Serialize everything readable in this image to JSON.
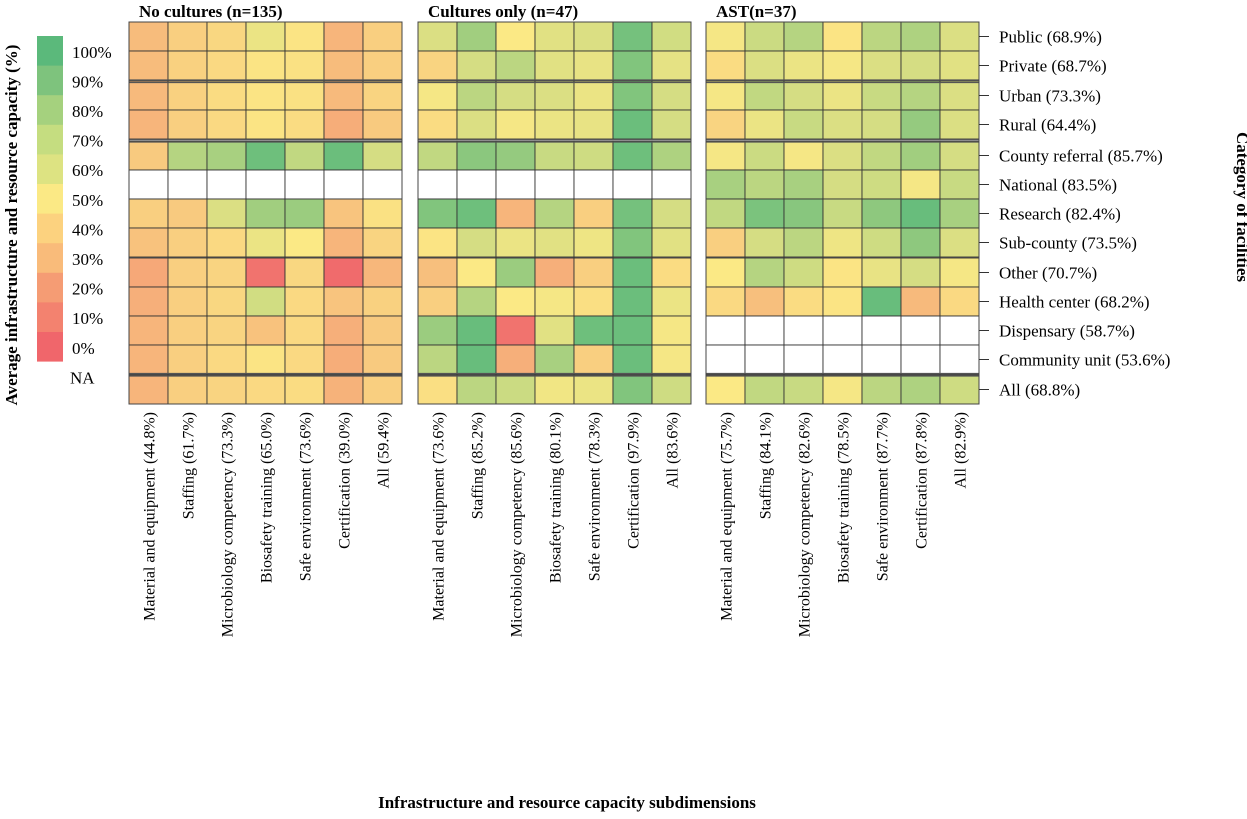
{
  "chart_data": {
    "type": "heatmap",
    "xlabel": "Infrastructure and resource capacity subdimensions",
    "ylabel_left": "Average infrastructure and resource capacity (%)",
    "ylabel_right": "Category of facilities",
    "legend": {
      "labels": [
        "100%",
        "90%",
        "80%",
        "70%",
        "60%",
        "50%",
        "40%",
        "30%",
        "20%",
        "10%",
        "0%",
        "NA"
      ],
      "colors": [
        "#5bb97b",
        "#7ec37d",
        "#a5d17e",
        "#c5dd80",
        "#dde382",
        "#fbe985",
        "#fcd27f",
        "#f9bb7a",
        "#f59c74",
        "#f3826f",
        "#f0666b",
        "#ffffff"
      ],
      "placement": "left"
    },
    "row_labels": [
      "Public (68.9%)",
      "Private (68.7%)",
      "Urban (73.3%)",
      "Rural (64.4%)",
      "County referral (85.7%)",
      "National (83.5%)",
      "Research (82.4%)",
      "Sub-county (73.5%)",
      "Other (70.7%)",
      "Health center (68.2%)",
      "Dispensary (58.7%)",
      "Community unit (53.6%)",
      "All (68.8%)"
    ],
    "row_groups": [
      [
        0,
        1
      ],
      [
        2,
        3
      ],
      [
        4,
        5,
        6,
        7,
        8,
        9,
        10,
        11
      ],
      [
        12
      ]
    ],
    "panels": [
      {
        "title": "No cultures (n=135)",
        "columns": [
          "Material and equipment (44.8%)",
          "Staffing (61.7%)",
          "Microbiology competency (73.3%)",
          "Biosafety training (65.0%)",
          "Safe environment (73.6%)",
          "Certification (39.0%)",
          "All (59.4%)"
        ],
        "values": [
          [
            33,
            40,
            43,
            55,
            48,
            30,
            40
          ],
          [
            33,
            41,
            44,
            48,
            47,
            33,
            40
          ],
          [
            32,
            41,
            45,
            48,
            47,
            32,
            42
          ],
          [
            30,
            40,
            44,
            48,
            45,
            27,
            38
          ],
          [
            38,
            72,
            76,
            94,
            68,
            95,
            62
          ],
          [
            null,
            null,
            null,
            null,
            null,
            null,
            null
          ],
          [
            40,
            38,
            60,
            78,
            80,
            36,
            47
          ],
          [
            35,
            40,
            44,
            55,
            50,
            30,
            42
          ],
          [
            25,
            40,
            42,
            5,
            43,
            2,
            31
          ],
          [
            28,
            40,
            43,
            63,
            44,
            36,
            41
          ],
          [
            30,
            40,
            42,
            35,
            44,
            28,
            38
          ],
          [
            30,
            40,
            44,
            48,
            44,
            27,
            38
          ],
          [
            30,
            40,
            42,
            44,
            45,
            29,
            40
          ]
        ]
      },
      {
        "title": "Cultures only (n=47)",
        "columns": [
          "Material and equipment (73.6%)",
          "Staffing (85.2%)",
          "Microbiology competency (85.6%)",
          "Biosafety training (80.1%)",
          "Safe environment (78.3%)",
          "Certification (97.9%)",
          "All (83.6%)"
        ],
        "values": [
          [
            60,
            78,
            50,
            58,
            60,
            92,
            63
          ],
          [
            42,
            62,
            70,
            58,
            56,
            88,
            57
          ],
          [
            52,
            70,
            62,
            60,
            55,
            88,
            62
          ],
          [
            45,
            60,
            52,
            55,
            56,
            95,
            62
          ],
          [
            68,
            85,
            82,
            66,
            64,
            94,
            74
          ],
          [
            null,
            null,
            null,
            null,
            null,
            null,
            null
          ],
          [
            88,
            94,
            30,
            72,
            40,
            92,
            62
          ],
          [
            48,
            62,
            55,
            58,
            54,
            88,
            58
          ],
          [
            34,
            50,
            80,
            28,
            40,
            95,
            45
          ],
          [
            40,
            72,
            50,
            52,
            46,
            95,
            55
          ],
          [
            80,
            96,
            5,
            58,
            94,
            95,
            52
          ],
          [
            70,
            96,
            28,
            76,
            40,
            95,
            52
          ],
          [
            46,
            70,
            65,
            53,
            55,
            88,
            64
          ]
        ]
      },
      {
        "title": "AST(n=37)",
        "columns": [
          "Material and equipment (75.7%)",
          "Staffing (84.1%)",
          "Microbiology competency (82.6%)",
          "Biosafety training (78.5%)",
          "Safe environment (87.7%)",
          "Certification (87.8%)",
          "All (82.9%)"
        ],
        "values": [
          [
            52,
            65,
            72,
            48,
            70,
            74,
            60
          ],
          [
            45,
            60,
            55,
            52,
            60,
            62,
            58
          ],
          [
            52,
            68,
            62,
            55,
            66,
            72,
            60
          ],
          [
            42,
            55,
            66,
            60,
            62,
            82,
            60
          ],
          [
            52,
            65,
            52,
            60,
            68,
            78,
            62
          ],
          [
            76,
            70,
            76,
            62,
            64,
            52,
            66
          ],
          [
            68,
            90,
            86,
            66,
            84,
            96,
            76
          ],
          [
            40,
            62,
            70,
            54,
            64,
            84,
            60
          ],
          [
            50,
            72,
            64,
            48,
            56,
            62,
            52
          ],
          [
            44,
            34,
            45,
            48,
            96,
            32,
            44
          ],
          [
            null,
            null,
            null,
            null,
            null,
            null,
            null
          ],
          [
            null,
            null,
            null,
            null,
            null,
            null,
            null
          ],
          [
            50,
            68,
            66,
            52,
            70,
            74,
            64
          ]
        ]
      }
    ]
  }
}
